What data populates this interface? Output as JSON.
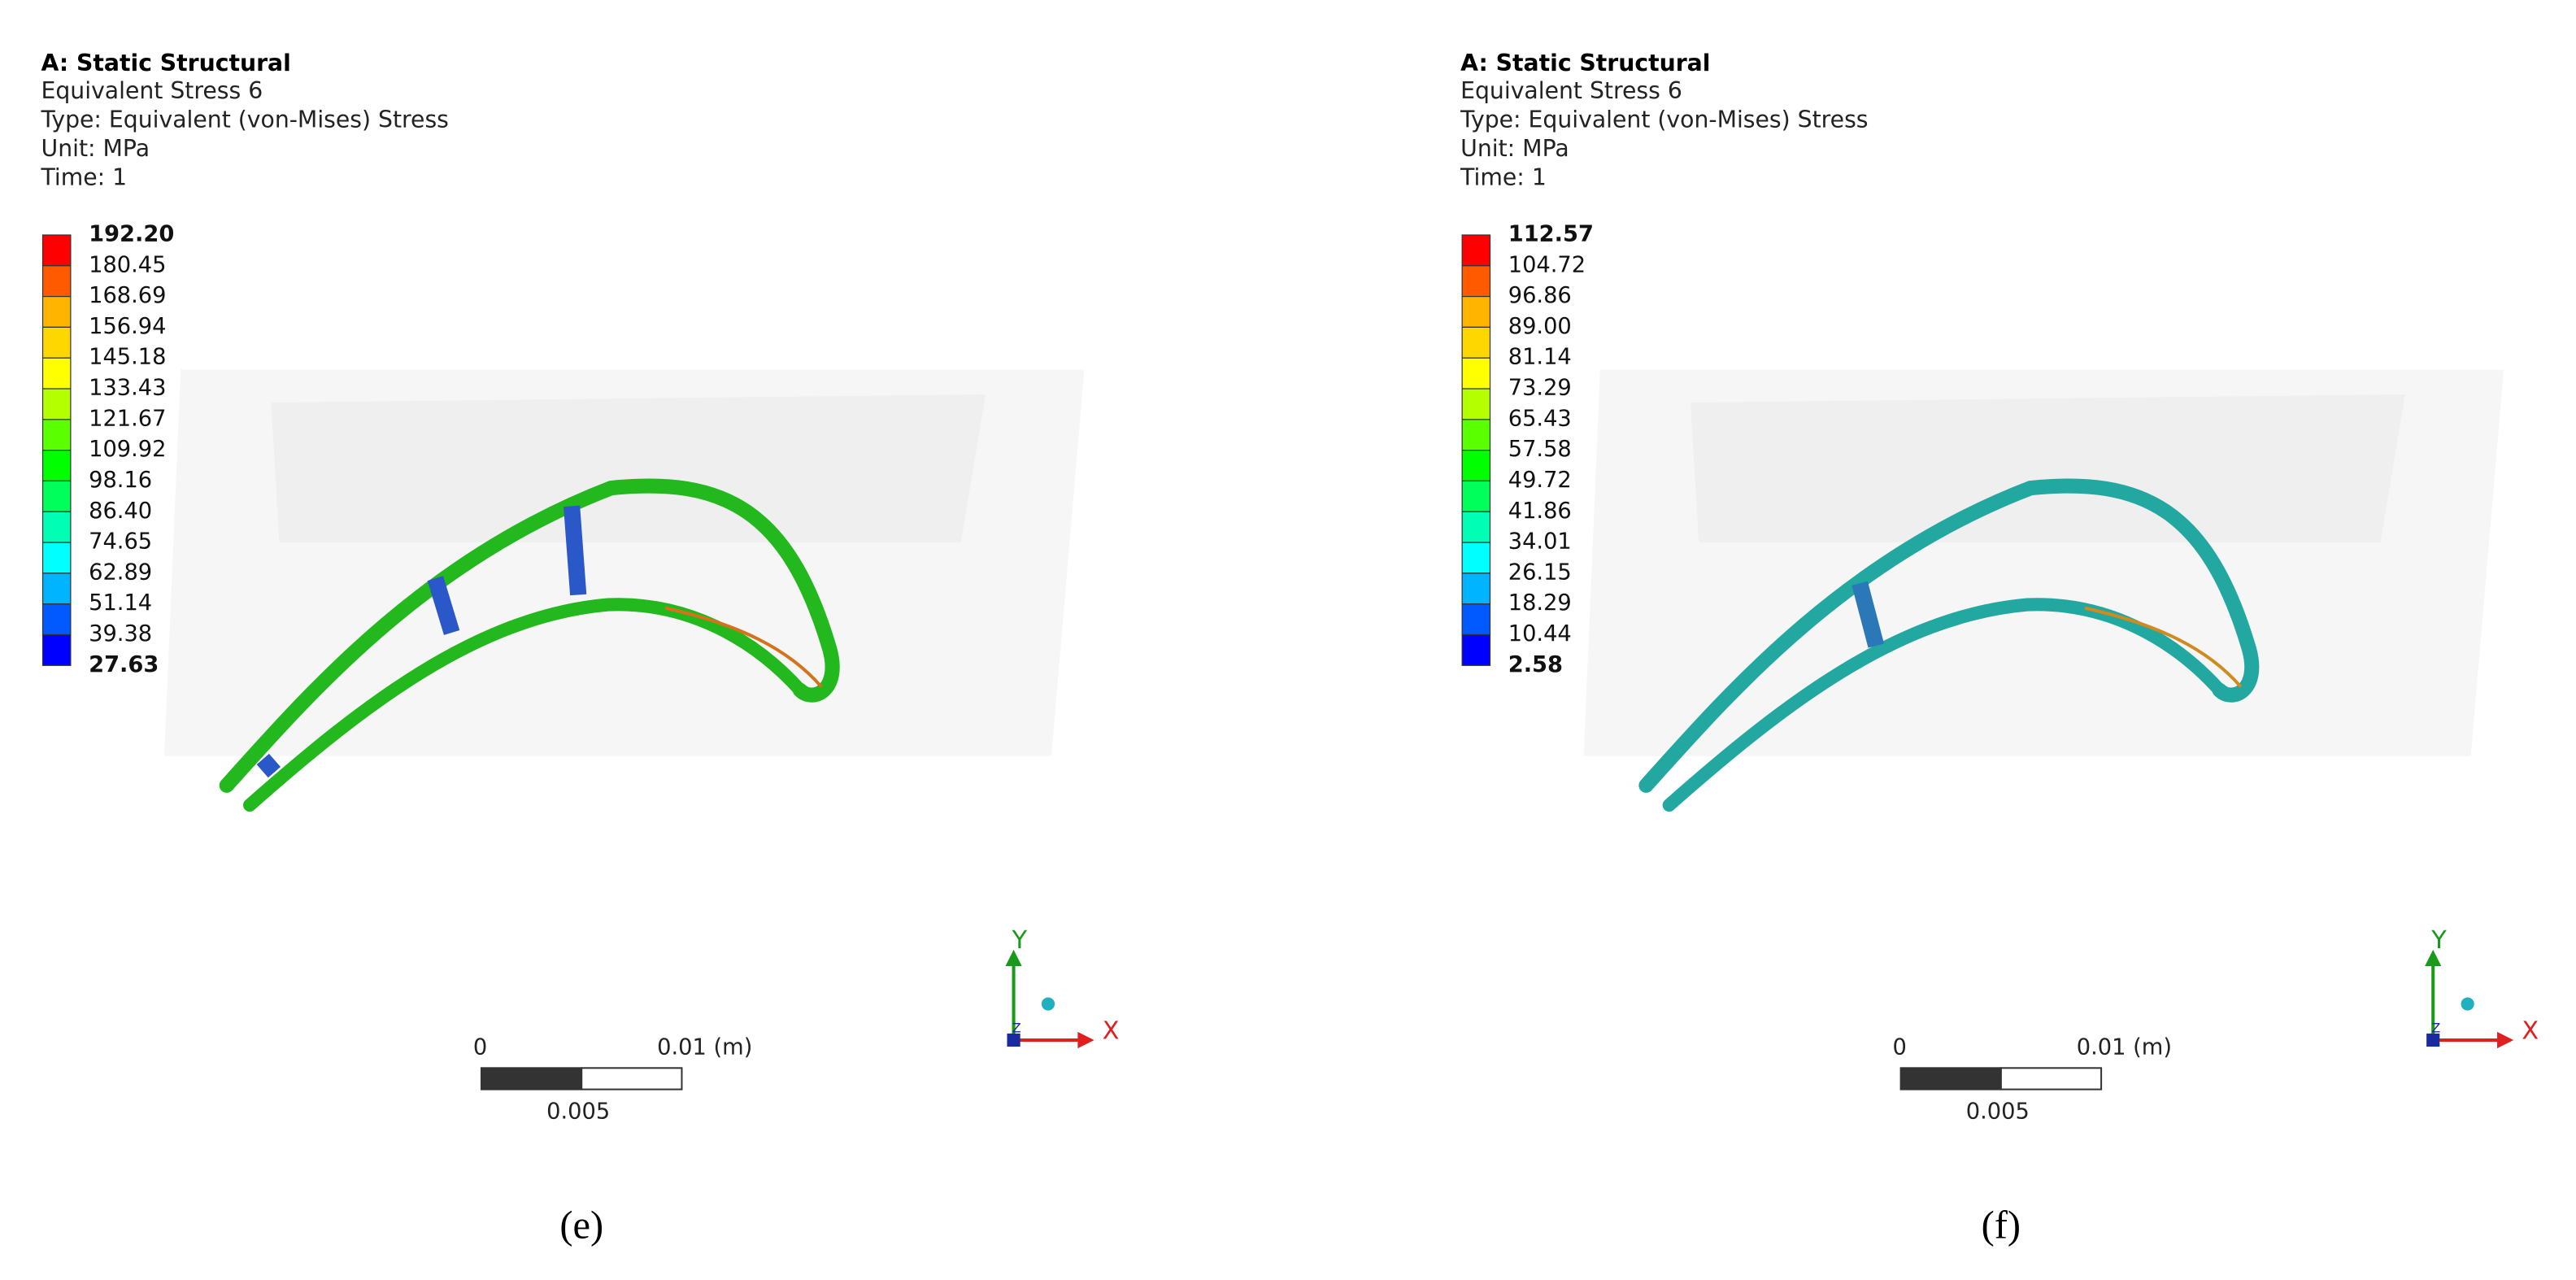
{
  "panels": [
    {
      "header": {
        "title": "A: Static Structural",
        "lines": [
          "Equivalent Stress 6",
          "Type: Equivalent (von-Mises) Stress",
          "Unit: MPa",
          "Time: 1"
        ]
      },
      "legend": [
        "192.20",
        "180.45",
        "168.69",
        "156.94",
        "145.18",
        "133.43",
        "121.67",
        "109.92",
        "98.16",
        "86.40",
        "74.65",
        "62.89",
        "51.14",
        "39.38",
        "27.63"
      ],
      "scale_bar": {
        "start": "0",
        "end": "0.01 (m)",
        "mid": "0.005"
      },
      "triad": {
        "y": "Y",
        "x": "X",
        "z": "Z"
      },
      "caption": "(e)"
    },
    {
      "header": {
        "title": "A: Static Structural",
        "lines": [
          "Equivalent Stress 6",
          "Type: Equivalent (von-Mises) Stress",
          "Unit: MPa",
          "Time: 1"
        ]
      },
      "legend": [
        "112.57",
        "104.72",
        "96.86",
        "89.00",
        "81.14",
        "73.29",
        "65.43",
        "57.58",
        "49.72",
        "41.86",
        "34.01",
        "26.15",
        "18.29",
        "10.44",
        "2.58"
      ],
      "scale_bar": {
        "start": "0",
        "end": "0.01 (m)",
        "mid": "0.005"
      },
      "triad": {
        "y": "Y",
        "x": "X",
        "z": "Z"
      },
      "caption": "(f)"
    }
  ]
}
